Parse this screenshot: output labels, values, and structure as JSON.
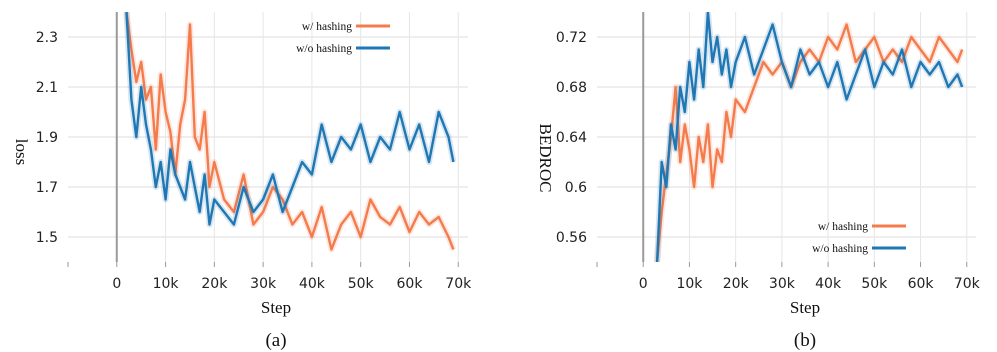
{
  "chart_data": [
    {
      "type": "line",
      "panel_caption": "(a)",
      "xlabel": "Step",
      "ylabel": "loss",
      "xlim": [
        -10000,
        72000
      ],
      "ylim": [
        1.4,
        2.4
      ],
      "xticks": [
        0,
        10000,
        20000,
        30000,
        40000,
        50000,
        60000,
        70000
      ],
      "xtick_labels": [
        "0",
        "10k",
        "20k",
        "30k",
        "40k",
        "50k",
        "60k",
        "70k"
      ],
      "yticks": [
        1.5,
        1.7,
        1.9,
        2.1,
        2.3
      ],
      "ytick_labels": [
        "1.5",
        "1.7",
        "1.9",
        "2.1",
        "2.3"
      ],
      "grid": true,
      "legend_position": "top-right",
      "series": [
        {
          "name": "w/ hashing",
          "color": "#f47c4c",
          "x": [
            2000,
            3000,
            4000,
            5000,
            6000,
            7000,
            8000,
            9000,
            10000,
            11000,
            12000,
            13000,
            14000,
            15000,
            16000,
            17000,
            18000,
            19000,
            20000,
            22000,
            24000,
            26000,
            28000,
            30000,
            32000,
            34000,
            36000,
            38000,
            40000,
            42000,
            44000,
            46000,
            48000,
            50000,
            52000,
            54000,
            56000,
            58000,
            60000,
            62000,
            64000,
            66000,
            68000,
            69000
          ],
          "values": [
            2.4,
            2.25,
            2.12,
            2.2,
            2.05,
            2.1,
            1.85,
            2.15,
            2.0,
            1.92,
            1.75,
            1.95,
            2.05,
            2.35,
            1.9,
            1.85,
            2.0,
            1.7,
            1.8,
            1.65,
            1.6,
            1.75,
            1.55,
            1.6,
            1.7,
            1.65,
            1.55,
            1.6,
            1.5,
            1.62,
            1.45,
            1.55,
            1.6,
            1.5,
            1.65,
            1.58,
            1.55,
            1.62,
            1.52,
            1.6,
            1.55,
            1.58,
            1.5,
            1.45
          ]
        },
        {
          "name": "w/o hashing",
          "color": "#1f77b4",
          "x": [
            2000,
            3000,
            4000,
            5000,
            6000,
            7000,
            8000,
            9000,
            10000,
            11000,
            12000,
            13000,
            14000,
            15000,
            16000,
            17000,
            18000,
            19000,
            20000,
            22000,
            24000,
            26000,
            28000,
            30000,
            32000,
            34000,
            36000,
            38000,
            40000,
            42000,
            44000,
            46000,
            48000,
            50000,
            52000,
            54000,
            56000,
            58000,
            60000,
            62000,
            64000,
            66000,
            68000,
            69000
          ],
          "values": [
            2.4,
            2.05,
            1.9,
            2.1,
            1.95,
            1.85,
            1.7,
            1.8,
            1.65,
            1.85,
            1.75,
            1.7,
            1.65,
            1.8,
            1.7,
            1.6,
            1.75,
            1.55,
            1.65,
            1.6,
            1.55,
            1.7,
            1.6,
            1.65,
            1.75,
            1.6,
            1.7,
            1.8,
            1.75,
            1.95,
            1.8,
            1.9,
            1.85,
            1.95,
            1.8,
            1.9,
            1.85,
            2.0,
            1.85,
            1.95,
            1.8,
            2.0,
            1.9,
            1.8
          ]
        }
      ]
    },
    {
      "type": "line",
      "panel_caption": "(b)",
      "xlabel": "Step",
      "ylabel": "BEDROC",
      "xlim": [
        -10000,
        72000
      ],
      "ylim": [
        0.54,
        0.74
      ],
      "xticks": [
        0,
        10000,
        20000,
        30000,
        40000,
        50000,
        60000,
        70000
      ],
      "xtick_labels": [
        "0",
        "10k",
        "20k",
        "30k",
        "40k",
        "50k",
        "60k",
        "70k"
      ],
      "yticks": [
        0.56,
        0.6,
        0.64,
        0.68,
        0.72
      ],
      "ytick_labels": [
        "0.56",
        "0.6",
        "0.64",
        "0.68",
        "0.72"
      ],
      "grid": true,
      "legend_position": "bottom-right",
      "series": [
        {
          "name": "w/ hashing",
          "color": "#f47c4c",
          "x": [
            3000,
            4000,
            5000,
            6000,
            7000,
            8000,
            9000,
            10000,
            11000,
            12000,
            13000,
            14000,
            15000,
            16000,
            17000,
            18000,
            19000,
            20000,
            22000,
            24000,
            26000,
            28000,
            30000,
            32000,
            34000,
            36000,
            38000,
            40000,
            42000,
            44000,
            46000,
            48000,
            50000,
            52000,
            54000,
            56000,
            58000,
            60000,
            62000,
            64000,
            66000,
            68000,
            69000
          ],
          "values": [
            0.54,
            0.58,
            0.61,
            0.64,
            0.68,
            0.62,
            0.65,
            0.63,
            0.6,
            0.64,
            0.62,
            0.65,
            0.6,
            0.63,
            0.62,
            0.66,
            0.64,
            0.67,
            0.66,
            0.68,
            0.7,
            0.69,
            0.7,
            0.68,
            0.7,
            0.71,
            0.7,
            0.72,
            0.71,
            0.73,
            0.7,
            0.71,
            0.72,
            0.7,
            0.71,
            0.7,
            0.72,
            0.71,
            0.7,
            0.72,
            0.71,
            0.7,
            0.71
          ]
        },
        {
          "name": "w/o hashing",
          "color": "#1f77b4",
          "x": [
            3000,
            4000,
            5000,
            6000,
            7000,
            8000,
            9000,
            10000,
            11000,
            12000,
            13000,
            14000,
            15000,
            16000,
            17000,
            18000,
            19000,
            20000,
            22000,
            24000,
            26000,
            28000,
            30000,
            32000,
            34000,
            36000,
            38000,
            40000,
            42000,
            44000,
            46000,
            48000,
            50000,
            52000,
            54000,
            56000,
            58000,
            60000,
            62000,
            64000,
            66000,
            68000,
            69000
          ],
          "values": [
            0.54,
            0.62,
            0.6,
            0.65,
            0.63,
            0.68,
            0.66,
            0.7,
            0.67,
            0.71,
            0.68,
            0.74,
            0.7,
            0.72,
            0.69,
            0.71,
            0.68,
            0.7,
            0.72,
            0.69,
            0.71,
            0.73,
            0.7,
            0.68,
            0.71,
            0.69,
            0.7,
            0.68,
            0.7,
            0.67,
            0.69,
            0.71,
            0.68,
            0.7,
            0.69,
            0.71,
            0.68,
            0.7,
            0.69,
            0.7,
            0.68,
            0.69,
            0.68
          ]
        }
      ]
    }
  ]
}
